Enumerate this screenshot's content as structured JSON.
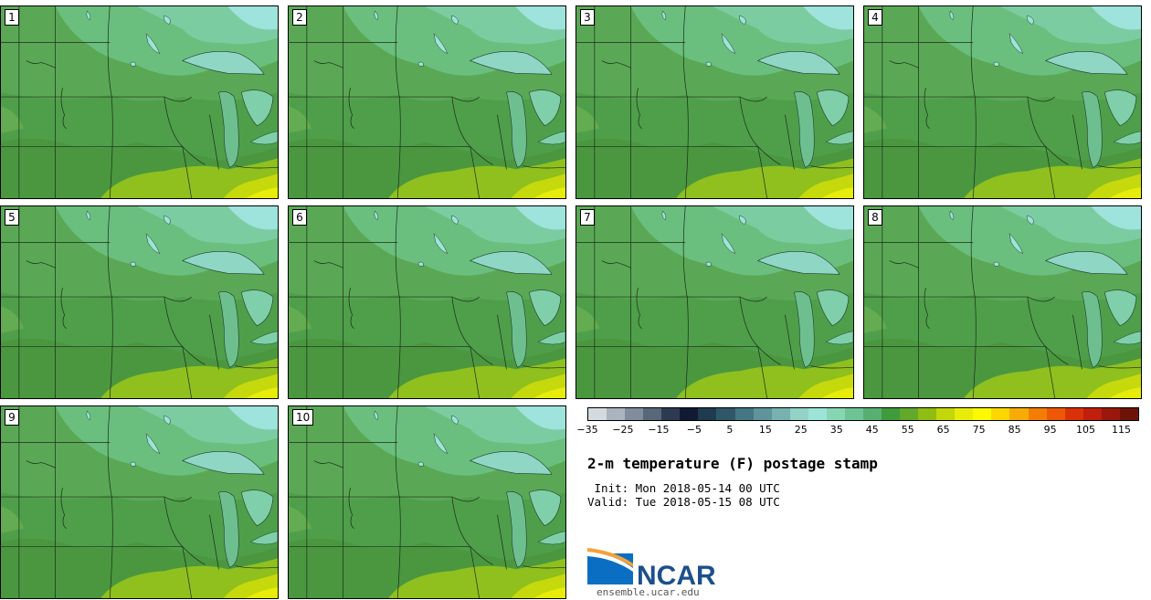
{
  "product": {
    "title": "2-m temperature (F) postage stamp",
    "init": " Init: Mon 2018-05-14 00 UTC",
    "valid": "Valid: Tue 2018-05-15 08 UTC"
  },
  "members": [
    "1",
    "2",
    "3",
    "4",
    "5",
    "6",
    "7",
    "8",
    "9",
    "10"
  ],
  "colorbar": {
    "ticks": [
      "−35",
      "−25",
      "−15",
      "−5",
      "5",
      "15",
      "25",
      "35",
      "45",
      "55",
      "65",
      "75",
      "85",
      "95",
      "105",
      "115"
    ],
    "range": [
      -35,
      120
    ],
    "colors": [
      "#d4dbe0",
      "#aab4be",
      "#7f8d9c",
      "#586779",
      "#2c3a52",
      "#111a33",
      "#1e3b4f",
      "#2e5868",
      "#447684",
      "#5f949b",
      "#78b2b0",
      "#93d2c6",
      "#9ce4d8",
      "#86d6b4",
      "#6ec394",
      "#57b072",
      "#3f9b3b",
      "#62a82a",
      "#8fbd14",
      "#c3d60a",
      "#e9ec08",
      "#fcf900",
      "#fcd800",
      "#f7ac05",
      "#f47d05",
      "#ee5705",
      "#d93209",
      "#bf1f0c",
      "#9a170c",
      "#6e1308"
    ]
  },
  "logo": {
    "text": "NCAR",
    "url": "ensemble.ucar.edu"
  }
}
